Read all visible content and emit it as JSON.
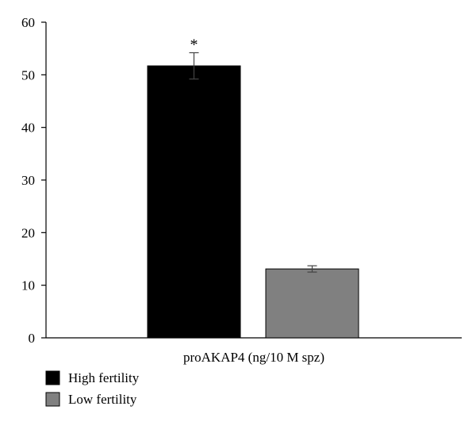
{
  "chart_data": {
    "type": "bar",
    "title": "",
    "xlabel": "proAKAP4 (ng/10 M spz)",
    "ylabel": "",
    "ylim": [
      0,
      60
    ],
    "yticks": [
      "0",
      "10",
      "20",
      "30",
      "40",
      "50",
      "60"
    ],
    "grid": false,
    "legend_position": "bottom-left",
    "series": [
      {
        "name": "High fertility",
        "value": 51.7,
        "error": 2.5,
        "color": "#000000",
        "annotation": "*"
      },
      {
        "name": "Low fertility",
        "value": 13.1,
        "error": 0.6,
        "color": "#808080",
        "annotation": ""
      }
    ]
  }
}
